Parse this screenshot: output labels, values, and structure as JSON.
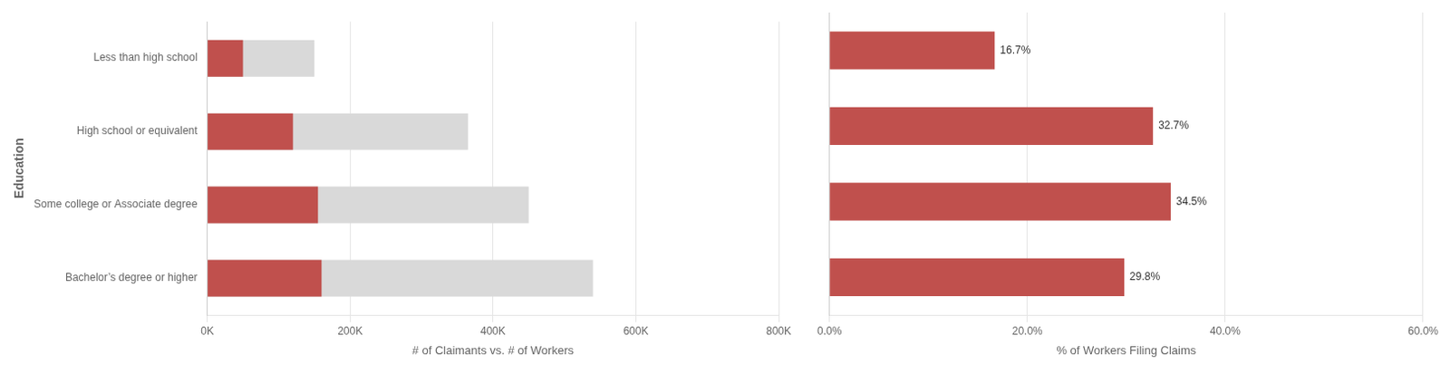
{
  "chart_data": [
    {
      "type": "bar",
      "orientation": "horizontal",
      "categories": [
        "Less than high school",
        "High school or equivalent",
        "Some college or Associate degree",
        "Bachelor’s degree or higher"
      ],
      "series": [
        {
          "color": "#d9d9d9",
          "values": [
            150000,
            365000,
            450000,
            540000
          ]
        },
        {
          "color": "#c0504d",
          "values": [
            50000,
            120000,
            155000,
            160000
          ]
        }
      ],
      "xlabel": "# of Claimants vs. # of Workers",
      "ylabel": "Education",
      "xlim": [
        0,
        800000
      ],
      "xticks": [
        {
          "value": 0,
          "label": "0K"
        },
        {
          "value": 200000,
          "label": "200K"
        },
        {
          "value": 400000,
          "label": "400K"
        },
        {
          "value": 600000,
          "label": "600K"
        },
        {
          "value": 800000,
          "label": "800K"
        }
      ],
      "grid": true
    },
    {
      "type": "bar",
      "orientation": "horizontal",
      "categories": [
        "Less than high school",
        "High school or equivalent",
        "Some college or Associate degree",
        "Bachelor’s degree or higher"
      ],
      "values": [
        16.7,
        32.7,
        34.5,
        29.8
      ],
      "value_labels": [
        "16.7%",
        "32.7%",
        "34.5%",
        "29.8%"
      ],
      "data_labels": true,
      "color": "#c0504d",
      "xlabel": "% of Workers Filing Claims",
      "xlim": [
        0,
        60.0
      ],
      "xticks": [
        {
          "value": 0.0,
          "label": "0.0%"
        },
        {
          "value": 20.0,
          "label": "20.0%"
        },
        {
          "value": 40.0,
          "label": "40.0%"
        },
        {
          "value": 60.0,
          "label": "60.0%"
        }
      ],
      "grid": true,
      "tick_labels": "x"
    }
  ]
}
